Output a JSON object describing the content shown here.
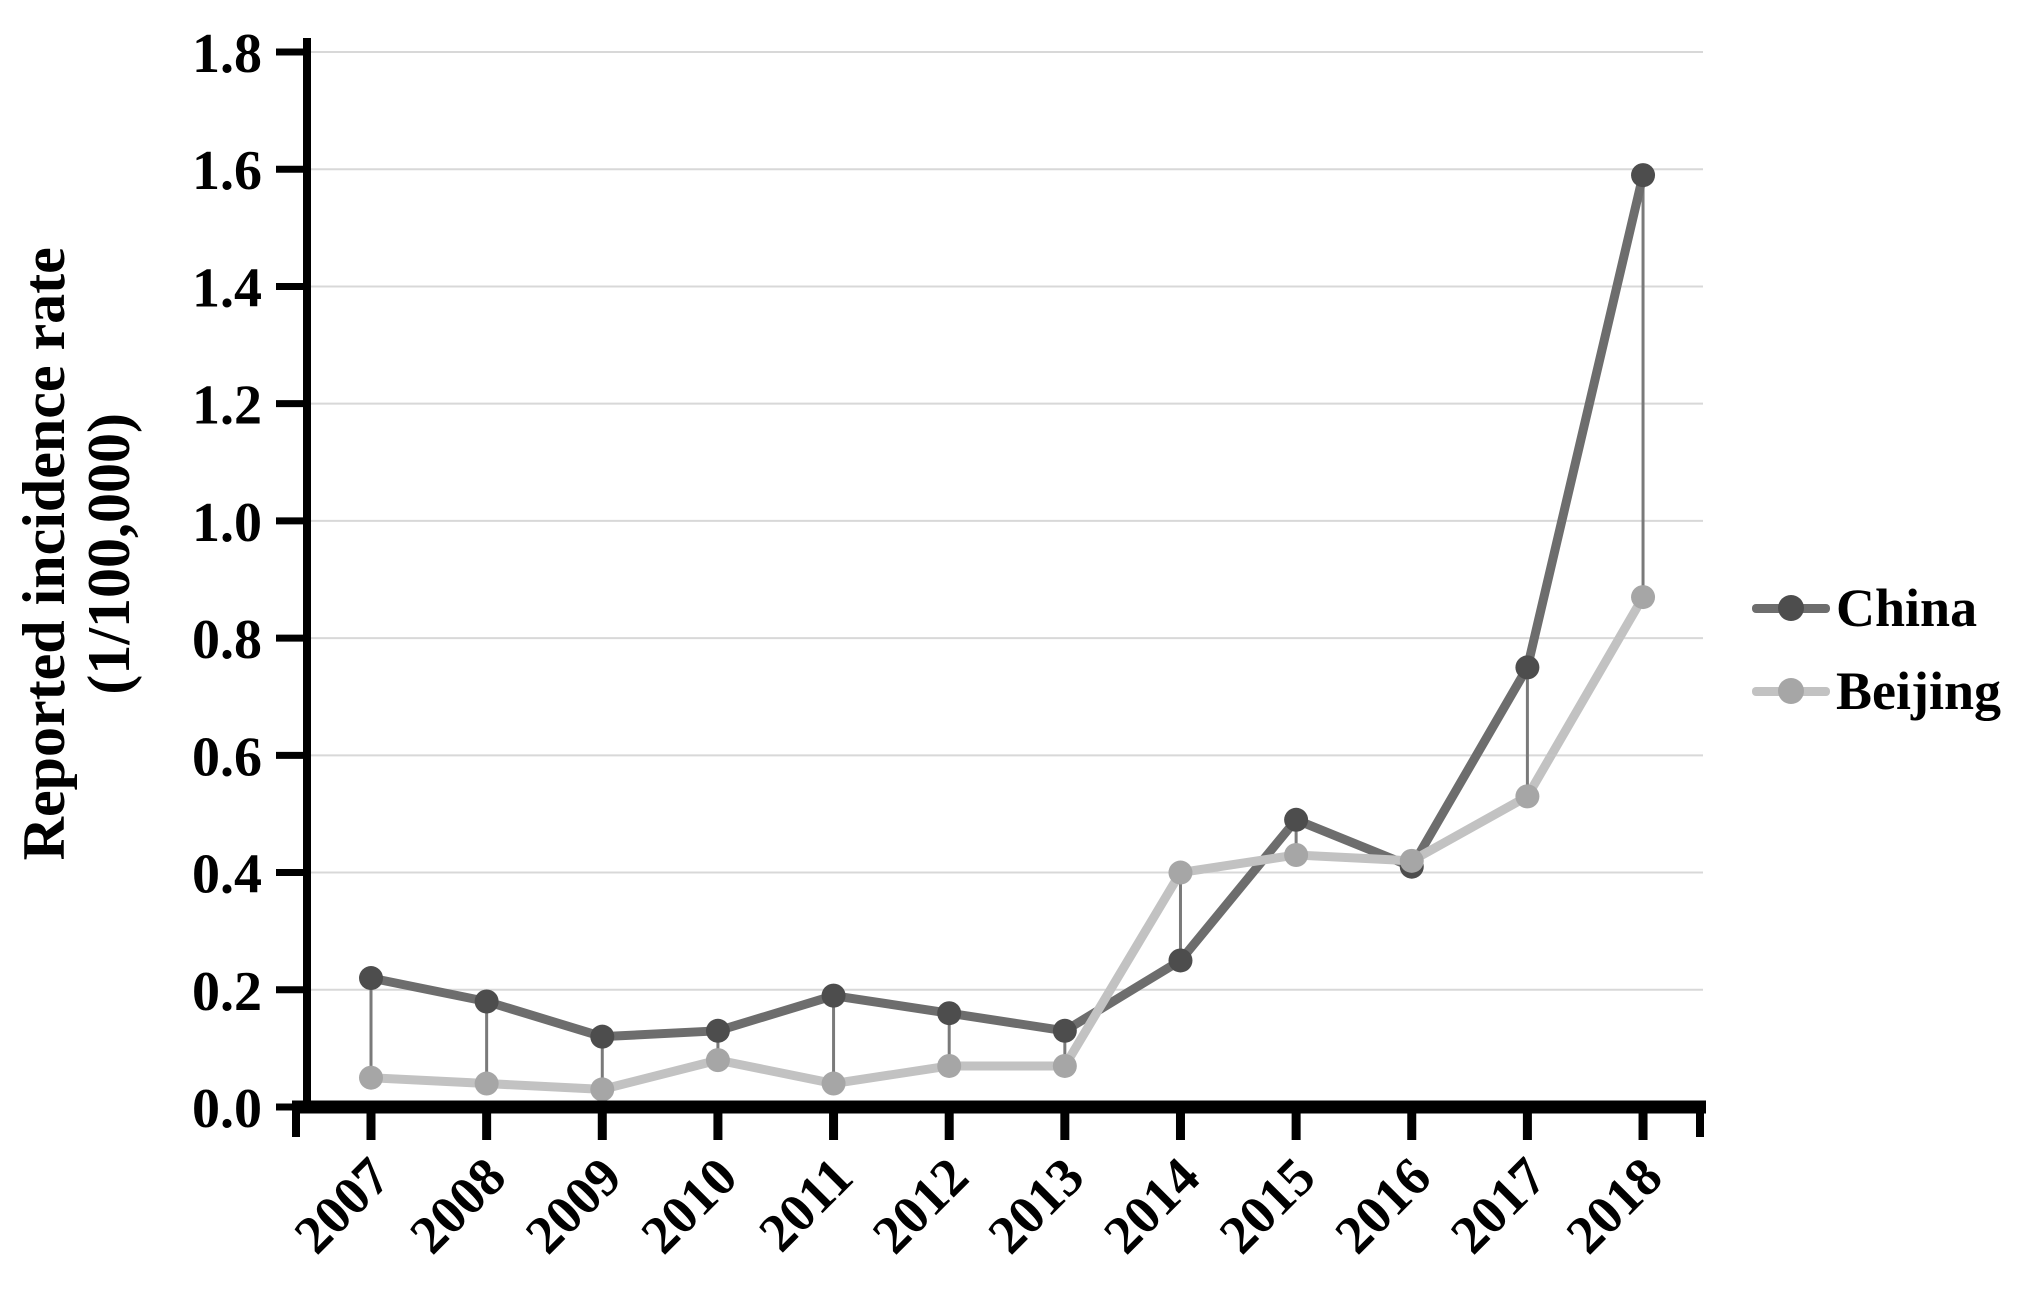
{
  "figure": {
    "y_axis_title_line1": "Reported incidence rate",
    "y_axis_title_line2": "(1/100,000)"
  },
  "chart_data": {
    "type": "line",
    "title": "",
    "xlabel": "",
    "ylabel": "Reported incidence rate (1/100,000)",
    "categories": [
      "2007",
      "2008",
      "2009",
      "2010",
      "2011",
      "2012",
      "2013",
      "2014",
      "2015",
      "2016",
      "2017",
      "2018"
    ],
    "series": [
      {
        "name": "China",
        "values": [
          0.22,
          0.18,
          0.12,
          0.13,
          0.19,
          0.16,
          0.13,
          0.25,
          0.49,
          0.41,
          0.75,
          1.59
        ],
        "line_color": "#6d6d6d",
        "marker_color": "#4d4d4d"
      },
      {
        "name": "Beijing",
        "values": [
          0.05,
          0.04,
          0.03,
          0.08,
          0.04,
          0.07,
          0.07,
          0.4,
          0.43,
          0.42,
          0.53,
          0.87
        ],
        "line_color": "#c2c2c2",
        "marker_color": "#a6a6a6"
      }
    ],
    "y_ticks": [
      "0.0",
      "0.2",
      "0.4",
      "0.6",
      "0.8",
      "1.0",
      "1.2",
      "1.4",
      "1.6",
      "1.8"
    ],
    "ylim": [
      0,
      1.8
    ],
    "grid": "horizontal",
    "legend_position": "right",
    "high_low_lines": true,
    "style": {
      "grid_color": "#d8d8d8",
      "connector_color": "#7a7a7a",
      "axis_color": "#000000",
      "background": "#ffffff"
    }
  }
}
